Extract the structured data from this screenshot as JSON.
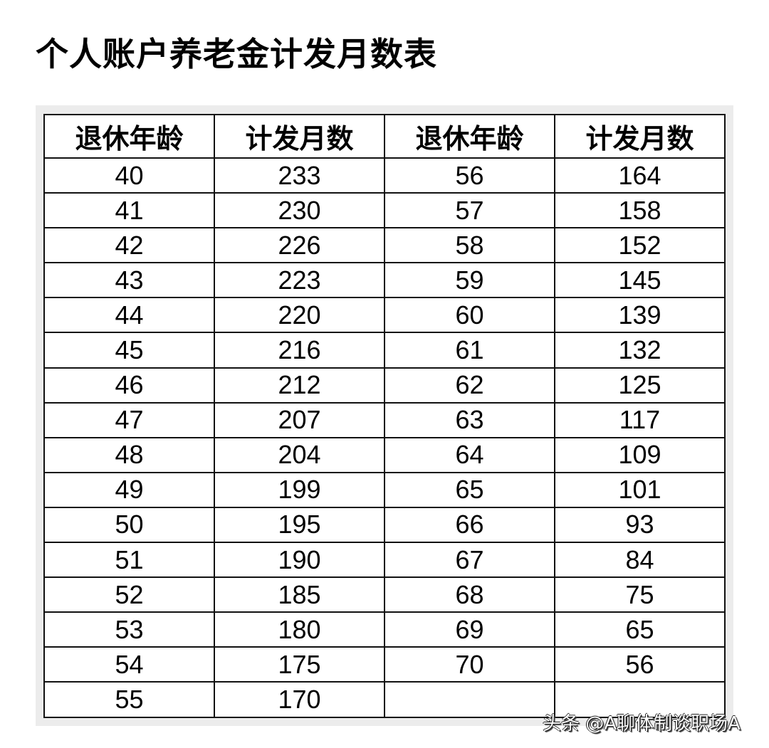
{
  "title": "个人账户养老金计发月数表",
  "headers": [
    "退休年龄",
    "计发月数",
    "退休年龄",
    "计发月数"
  ],
  "rows": [
    [
      "40",
      "233",
      "56",
      "164"
    ],
    [
      "41",
      "230",
      "57",
      "158"
    ],
    [
      "42",
      "226",
      "58",
      "152"
    ],
    [
      "43",
      "223",
      "59",
      "145"
    ],
    [
      "44",
      "220",
      "60",
      "139"
    ],
    [
      "45",
      "216",
      "61",
      "132"
    ],
    [
      "46",
      "212",
      "62",
      "125"
    ],
    [
      "47",
      "207",
      "63",
      "117"
    ],
    [
      "48",
      "204",
      "64",
      "109"
    ],
    [
      "49",
      "199",
      "65",
      "101"
    ],
    [
      "50",
      "195",
      "66",
      "93"
    ],
    [
      "51",
      "190",
      "67",
      "84"
    ],
    [
      "52",
      "185",
      "68",
      "75"
    ],
    [
      "53",
      "180",
      "69",
      "65"
    ],
    [
      "54",
      "175",
      "70",
      "56"
    ],
    [
      "55",
      "170",
      "",
      ""
    ]
  ],
  "watermark": "头条 @A聊体制谈职场A"
}
